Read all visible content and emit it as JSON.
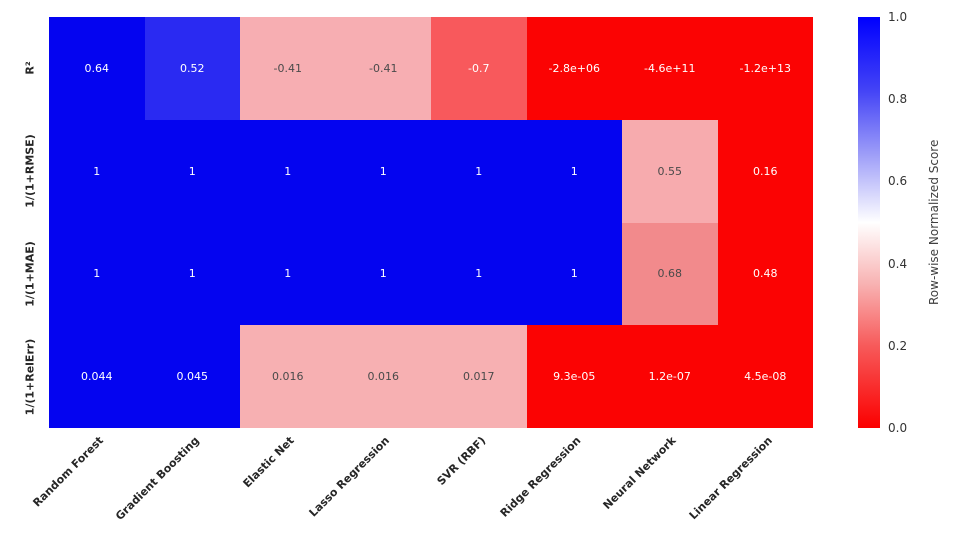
{
  "chart_data": {
    "type": "heatmap",
    "title": "",
    "x_categories": [
      "Random Forest",
      "Gradient Boosting",
      "Elastic Net",
      "Lasso Regression",
      "SVR (RBF)",
      "Ridge Regression",
      "Neural Network",
      "Linear Regression"
    ],
    "y_categories": [
      "R²",
      "1/(1+RMSE)",
      "1/(1+MAE)",
      "1/(1+RelErr)"
    ],
    "cells": [
      [
        [
          "0.64",
          "blue_full"
        ],
        [
          "0.52",
          "blue_052"
        ],
        [
          "-0.41",
          "pink_light"
        ],
        [
          "-0.41",
          "pink_light"
        ],
        [
          "-0.7",
          "salmon"
        ],
        [
          "-2.8e+06",
          "red_full"
        ],
        [
          "-4.6e+11",
          "red_full"
        ],
        [
          "-1.2e+13",
          "red_full"
        ]
      ],
      [
        [
          "1",
          "blue_full"
        ],
        [
          "1",
          "blue_full"
        ],
        [
          "1",
          "blue_full"
        ],
        [
          "1",
          "blue_full"
        ],
        [
          "1",
          "blue_full"
        ],
        [
          "1",
          "blue_full"
        ],
        [
          "0.55",
          "pink_055"
        ],
        [
          "0.16",
          "red_full"
        ]
      ],
      [
        [
          "1",
          "blue_full"
        ],
        [
          "1",
          "blue_full"
        ],
        [
          "1",
          "blue_full"
        ],
        [
          "1",
          "blue_full"
        ],
        [
          "1",
          "blue_full"
        ],
        [
          "1",
          "blue_full"
        ],
        [
          "0.68",
          "salmon_068"
        ],
        [
          "0.48",
          "red_full"
        ]
      ],
      [
        [
          "0.044",
          "blue_full"
        ],
        [
          "0.045",
          "blue_full"
        ],
        [
          "0.016",
          "pink_row4"
        ],
        [
          "0.016",
          "pink_row4"
        ],
        [
          "0.017",
          "pink_row4"
        ],
        [
          "9.3e-05",
          "red_full"
        ],
        [
          "1.2e-07",
          "red_full"
        ],
        [
          "4.5e-08",
          "red_full"
        ]
      ]
    ],
    "colors": {
      "blue_full": "#0404f0",
      "blue_052": "#2a2af2",
      "pink_light": "#f7aeb2",
      "salmon": "#f8595c",
      "red_full": "#fb0303",
      "pink_055": "#f7abae",
      "salmon_068": "#f28a8c",
      "pink_row4": "#f7b0b2"
    },
    "dark_text_colors": [
      "pink_light",
      "pink_055",
      "salmon_068",
      "pink_row4"
    ],
    "cell_text_light": "#ffffff",
    "cell_text_dark": "#4a4a4a",
    "colorbar": {
      "label": "Row-wise Normalized Score",
      "ticks": [
        "1.0",
        "0.8",
        "0.6",
        "0.4",
        "0.2",
        "0.0"
      ],
      "range": [
        0.0,
        1.0
      ],
      "gradient_top": "#0000ff",
      "gradient_mid": "#ffffff",
      "gradient_bottom": "#ff0000"
    },
    "legend_position": "right",
    "grid": false
  }
}
